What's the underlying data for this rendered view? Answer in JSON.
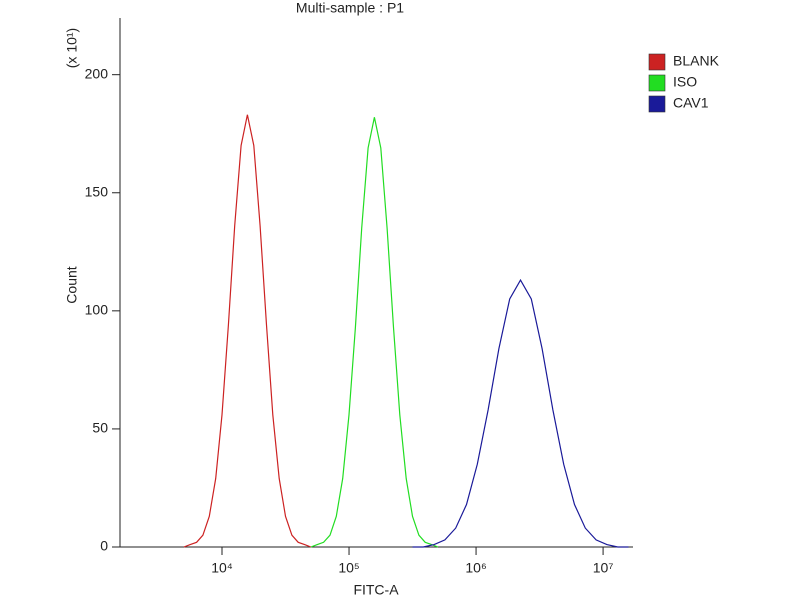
{
  "chart_data": {
    "type": "line",
    "title": "Multi-sample : P1",
    "x_label": "FITC-A",
    "y_label": "Count",
    "y_unit_label": "(x 10¹)",
    "log_x": true,
    "legend_position": "right",
    "xlim": [
      1574,
      17200000
    ],
    "ylim": [
      0,
      224
    ],
    "xticks": [
      {
        "value": 10000,
        "label": "10⁴"
      },
      {
        "value": 100000,
        "label": "10⁵"
      },
      {
        "value": 1000000,
        "label": "10⁶"
      },
      {
        "value": 10000000,
        "label": "10⁷"
      }
    ],
    "yticks": [
      0,
      50,
      100,
      150,
      200
    ],
    "series": [
      {
        "name": "BLANK",
        "color": "#cc2222",
        "x": [
          5012,
          5623,
          6310,
          7079,
          7943,
          8913,
          10000,
          11220,
          12589,
          14125,
          15849,
          17783,
          19953,
          22387,
          25119,
          28184,
          31623,
          35481,
          39811,
          44668,
          50119
        ],
        "values": [
          0,
          1,
          2,
          5,
          13,
          29,
          56,
          94,
          136,
          170,
          183,
          170,
          136,
          94,
          56,
          29,
          13,
          5,
          2,
          1,
          0
        ]
      },
      {
        "name": "ISO",
        "color": "#22dd22",
        "x": [
          50119,
          56234,
          63096,
          70795,
          79433,
          89125,
          100000,
          112202,
          125893,
          141254,
          158489,
          177828,
          199526,
          223872,
          251189,
          281838,
          316228,
          354813,
          398107,
          446684,
          501187
        ],
        "values": [
          0,
          1,
          2,
          5,
          13,
          29,
          56,
          93,
          135,
          169,
          182,
          169,
          135,
          93,
          56,
          29,
          13,
          5,
          2,
          1,
          0
        ]
      },
      {
        "name": "CAV1",
        "color": "#1a1a99",
        "x": [
          316228,
          384592,
          467735,
          568853,
          691831,
          841395,
          1023293,
          1244515,
          1513561,
          1840772,
          2238721,
          2722701,
          3311311,
          4027170,
          4897788,
          5956621,
          7244360,
          8810489,
          10715193,
          13031668,
          15848932
        ],
        "values": [
          0,
          0,
          1,
          3,
          8,
          18,
          35,
          58,
          84,
          105,
          113,
          105,
          84,
          58,
          35,
          18,
          8,
          3,
          1,
          0,
          0
        ]
      }
    ]
  }
}
